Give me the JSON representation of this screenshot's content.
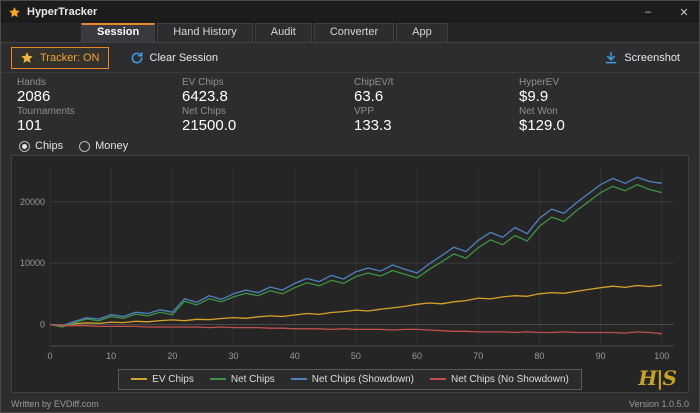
{
  "titlebar": {
    "title": "HyperTracker",
    "minimize": "–",
    "close": "✕"
  },
  "tabs": [
    {
      "label": "Session",
      "active": true
    },
    {
      "label": "Hand History",
      "active": false
    },
    {
      "label": "Audit",
      "active": false
    },
    {
      "label": "Converter",
      "active": false
    },
    {
      "label": "App",
      "active": false
    }
  ],
  "toolbar": {
    "tracker_label": "Tracker: ON",
    "clear_label": "Clear Session",
    "screenshot_label": "Screenshot"
  },
  "stats": {
    "items": [
      {
        "label": "Hands",
        "value": "2086"
      },
      {
        "label": "EV Chips",
        "value": "6423.8"
      },
      {
        "label": "ChipEV/t",
        "value": "63.6"
      },
      {
        "label": "HyperEV",
        "value": "$9.9"
      },
      {
        "label": "Tournaments",
        "value": "101"
      },
      {
        "label": "Net Chips",
        "value": "21500.0"
      },
      {
        "label": "VPP",
        "value": "133.3"
      },
      {
        "label": "Net Won",
        "value": "$129.0"
      }
    ]
  },
  "view_toggle": {
    "options": [
      {
        "label": "Chips",
        "selected": true
      },
      {
        "label": "Money",
        "selected": false
      }
    ]
  },
  "chart_data": {
    "type": "line",
    "xlabel": "",
    "ylabel": "",
    "x_start": 0,
    "x_step": 2,
    "xlim": [
      0,
      102
    ],
    "ylim": [
      -3500,
      25500
    ],
    "x_ticks": [
      0,
      10,
      20,
      30,
      40,
      50,
      60,
      70,
      80,
      90,
      100
    ],
    "y_ticks": [
      0,
      10000,
      20000
    ],
    "grid": true,
    "legend_position": "bottom-center",
    "series": [
      {
        "name": "EV Chips",
        "color": "#d6a227",
        "values": [
          0,
          -150,
          100,
          280,
          180,
          400,
          320,
          520,
          450,
          640,
          760,
          620,
          850,
          780,
          980,
          1120,
          1020,
          1250,
          1400,
          1300,
          1550,
          1800,
          1650,
          1950,
          2100,
          2350,
          2200,
          2500,
          2700,
          2950,
          3300,
          3500,
          3380,
          3700,
          3900,
          4300,
          4180,
          4500,
          4700,
          4600,
          5000,
          5200,
          5080,
          5400,
          5700,
          6000,
          6250,
          6050,
          6350,
          6200,
          6423.8
        ]
      },
      {
        "name": "Net Chips",
        "color": "#3f9143",
        "values": [
          0,
          -400,
          300,
          900,
          600,
          1300,
          1000,
          1700,
          1400,
          2000,
          1600,
          3800,
          3200,
          4200,
          3700,
          4500,
          5100,
          4700,
          5500,
          5000,
          6000,
          6800,
          6300,
          7200,
          6700,
          7800,
          8400,
          7900,
          8800,
          8200,
          7600,
          9000,
          10200,
          11500,
          10800,
          12500,
          13800,
          13000,
          14500,
          13600,
          16000,
          17500,
          16800,
          18500,
          20000,
          21500,
          22500,
          21800,
          22800,
          22000,
          21500
        ]
      },
      {
        "name": "Net Chips (Showdown)",
        "color": "#4f81bd",
        "values": [
          0,
          -200,
          500,
          1100,
          900,
          1600,
          1300,
          2000,
          1800,
          2400,
          2000,
          4200,
          3600,
          4700,
          4100,
          5000,
          5600,
          5200,
          6100,
          5600,
          6700,
          7500,
          7000,
          8000,
          7400,
          8600,
          9200,
          8700,
          9700,
          9000,
          8400,
          9900,
          11200,
          12600,
          11900,
          13700,
          15000,
          14200,
          15800,
          14800,
          17300,
          18800,
          18100,
          19800,
          21300,
          22800,
          23800,
          23000,
          24000,
          23300,
          23000
        ]
      },
      {
        "name": "Net Chips (No Showdown)",
        "color": "#c0504d",
        "values": [
          0,
          -200,
          -200,
          -200,
          -300,
          -300,
          -300,
          -300,
          -400,
          -400,
          -400,
          -400,
          -400,
          -500,
          -400,
          -500,
          -500,
          -500,
          -600,
          -600,
          -700,
          -700,
          -700,
          -800,
          -700,
          -800,
          -800,
          -800,
          -900,
          -800,
          -800,
          -900,
          -1000,
          -1100,
          -1100,
          -1200,
          -1200,
          -1200,
          -1300,
          -1200,
          -1300,
          -1300,
          -1200,
          -1300,
          -1300,
          -1300,
          -1300,
          -1400,
          -1200,
          -1300,
          -1500
        ]
      }
    ]
  },
  "logo_text": "H|S",
  "statusbar": {
    "left": "Written by EVDiff.com",
    "right": "Version 1.0.5.0"
  },
  "colors": {
    "accent_orange": "#e8872a",
    "icon_blue": "#3ba0e8",
    "gold": "#c9a227"
  }
}
